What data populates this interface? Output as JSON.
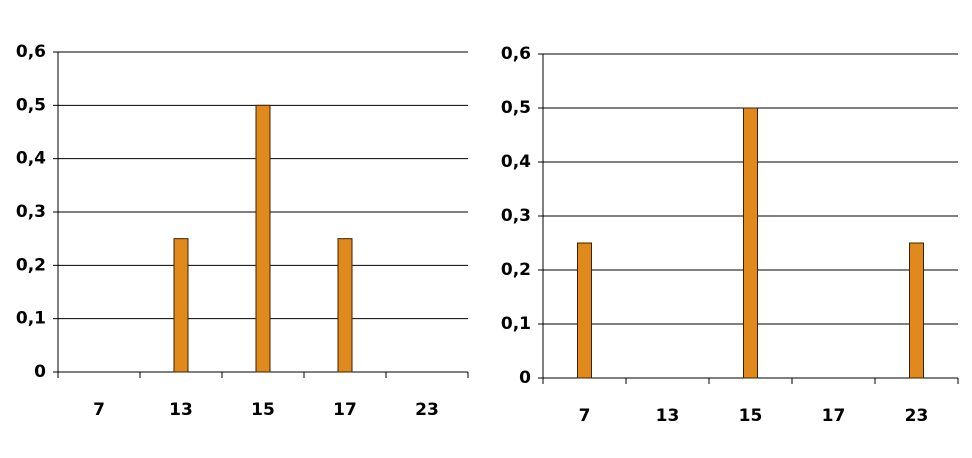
{
  "chart_data": [
    {
      "type": "bar",
      "categories": [
        "7",
        "13",
        "15",
        "17",
        "23"
      ],
      "values": [
        0,
        0.25,
        0.5,
        0.25,
        0
      ],
      "color": "#e08a1e",
      "ylim": [
        0,
        0.6
      ],
      "yticks": [
        0,
        {
          "value": 0.1,
          "label": "0,1"
        },
        {
          "value": 0.2,
          "label": "0,2"
        },
        {
          "value": 0.3,
          "label": "0,3"
        },
        {
          "value": 0.4,
          "label": "0,4"
        },
        {
          "value": 0.5,
          "label": "0,5"
        },
        {
          "value": 0.6,
          "label": "0,6"
        }
      ],
      "grid": true
    },
    {
      "type": "bar",
      "categories": [
        "7",
        "13",
        "15",
        "17",
        "23"
      ],
      "values": [
        0.25,
        0,
        0.5,
        0,
        0.25
      ],
      "color": "#e08a1e",
      "ylim": [
        0,
        0.6
      ],
      "yticks": [
        0,
        {
          "value": 0.1,
          "label": "0,1"
        },
        {
          "value": 0.2,
          "label": "0,2"
        },
        {
          "value": 0.3,
          "label": "0,3"
        },
        {
          "value": 0.4,
          "label": "0,4"
        },
        {
          "value": 0.5,
          "label": "0,5"
        },
        {
          "value": 0.6,
          "label": "0,6"
        }
      ],
      "grid": true
    }
  ]
}
